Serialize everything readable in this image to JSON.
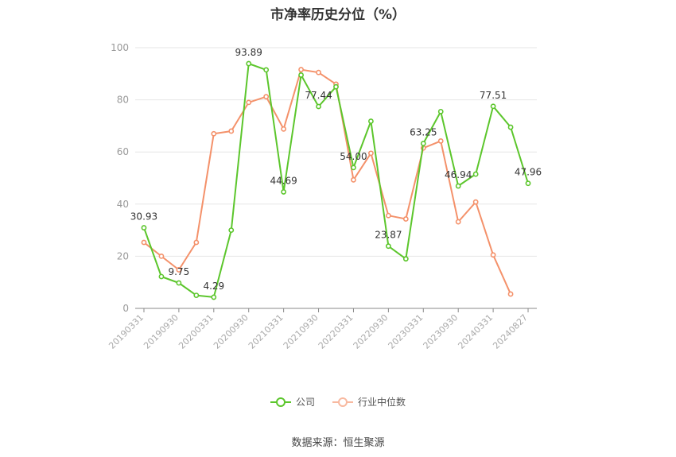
{
  "chart_data": {
    "type": "line",
    "title": "市净率历史分位（%）",
    "ylim": [
      0,
      100
    ],
    "yticks": [
      0,
      20,
      40,
      60,
      80,
      100
    ],
    "x_tick_labels": [
      "20190331",
      "20190930",
      "20200331",
      "20200930",
      "20210331",
      "20210930",
      "20220331",
      "20220930",
      "20230331",
      "20230930",
      "20240331",
      "20240827"
    ],
    "grid": true,
    "legend_position": "bottom",
    "series": [
      {
        "name": "公司",
        "color": "#5cc62c",
        "values": [
          30.93,
          12.2,
          9.75,
          5.0,
          4.29,
          30.0,
          93.89,
          91.5,
          44.69,
          89.5,
          77.44,
          85.0,
          54.0,
          71.8,
          23.87,
          19.0,
          63.25,
          75.5,
          46.94,
          51.5,
          77.51,
          69.5,
          47.96
        ],
        "labels": {
          "0": "30.93",
          "2": "9.75",
          "4": "4.29",
          "6": "93.89",
          "8": "44.69",
          "10": "77.44",
          "12": "54.00",
          "14": "23.87",
          "16": "63.25",
          "18": "46.94",
          "20": "77.51",
          "22": "47.96"
        }
      },
      {
        "name": "行业中位数",
        "color": "#f4916a",
        "values": [
          25.3,
          20.0,
          14.8,
          25.3,
          67.0,
          68.0,
          79.0,
          81.2,
          68.8,
          91.6,
          90.5,
          86.0,
          49.3,
          59.5,
          35.6,
          34.3,
          61.5,
          64.2,
          33.2,
          40.8,
          20.5,
          5.5
        ]
      }
    ]
  },
  "source": "数据来源：恒生聚源"
}
